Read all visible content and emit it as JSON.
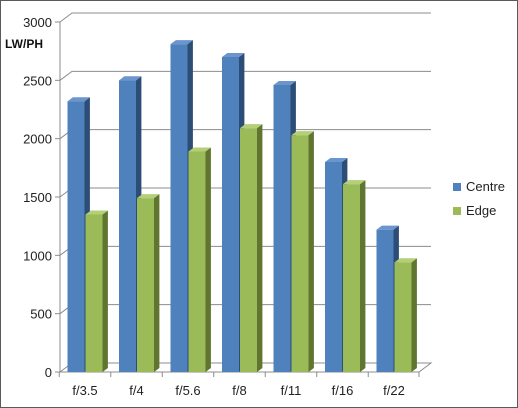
{
  "chart_data": {
    "type": "bar",
    "title": "",
    "xlabel": "",
    "ylabel": "LW/PH",
    "ylim": [
      0,
      3000
    ],
    "yticks": [
      0,
      500,
      1000,
      1500,
      2000,
      2500,
      3000
    ],
    "grid": true,
    "legend_position": "right",
    "categories": [
      "f/3.5",
      "f/4",
      "f/5.6",
      "f/8",
      "f/11",
      "f/16",
      "f/22"
    ],
    "series": [
      {
        "name": "Centre",
        "values": [
          2320,
          2500,
          2810,
          2700,
          2460,
          1800,
          1220
        ]
      },
      {
        "name": "Edge",
        "values": [
          1350,
          1490,
          1890,
          2090,
          2030,
          1610,
          940
        ]
      }
    ]
  },
  "colors": {
    "centre_front": "#4f81bd",
    "centre_side": "#2c4d75",
    "centre_top": "#6c95ce",
    "edge_front": "#9bbb59",
    "edge_side": "#5f7530",
    "edge_top": "#b3cf77",
    "grid": "#8c8c8c",
    "axis": "#8c8c8c"
  }
}
